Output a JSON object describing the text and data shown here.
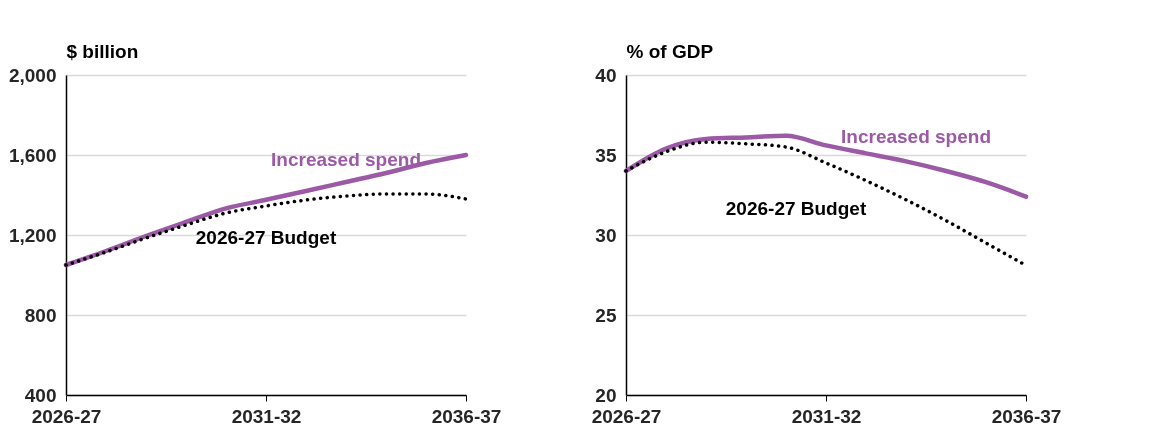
{
  "chart_data": [
    {
      "type": "line",
      "ylabel": "$ billion",
      "categories": [
        "2026-27",
        null,
        null,
        null,
        null,
        "2031-32",
        null,
        null,
        null,
        null,
        "2036-37"
      ],
      "ylim": [
        400,
        2000
      ],
      "yticks": [
        400,
        800,
        {
          "value": 1200,
          "label": "1,200"
        },
        {
          "value": 1600,
          "label": "1,600"
        },
        {
          "value": 2000,
          "label": "2,000"
        }
      ],
      "grid": "y",
      "legend": false,
      "series": [
        {
          "name": "Increased spend",
          "color": "#9b59a6",
          "line_style": "solid",
          "values": [
            1050,
            1120,
            1195,
            1265,
            1333,
            1376,
            1420,
            1465,
            1510,
            1560,
            1600
          ]
        },
        {
          "name": "2026-27 Budget",
          "color": "#000000",
          "line_style": "dotted",
          "values": [
            1050,
            1115,
            1185,
            1250,
            1310,
            1345,
            1375,
            1395,
            1405,
            1405,
            1380
          ]
        }
      ]
    },
    {
      "type": "line",
      "ylabel": "% of GDP",
      "categories": [
        "2026-27",
        null,
        null,
        null,
        null,
        "2031-32",
        null,
        null,
        null,
        null,
        "2036-37"
      ],
      "ylim": [
        20,
        40
      ],
      "yticks": [
        20,
        25,
        30,
        35,
        40
      ],
      "grid": "y",
      "legend": false,
      "series": [
        {
          "name": "Increased spend",
          "color": "#9b59a6",
          "line_style": "solid",
          "values": [
            34.0,
            35.4,
            36.0,
            36.1,
            36.2,
            35.6,
            35.1,
            34.6,
            34.0,
            33.3,
            32.4
          ]
        },
        {
          "name": "2026-27 Budget",
          "color": "#000000",
          "line_style": "dotted",
          "values": [
            34.0,
            35.2,
            35.8,
            35.7,
            35.5,
            34.5,
            33.4,
            32.2,
            30.9,
            29.5,
            28.1
          ]
        }
      ]
    }
  ]
}
